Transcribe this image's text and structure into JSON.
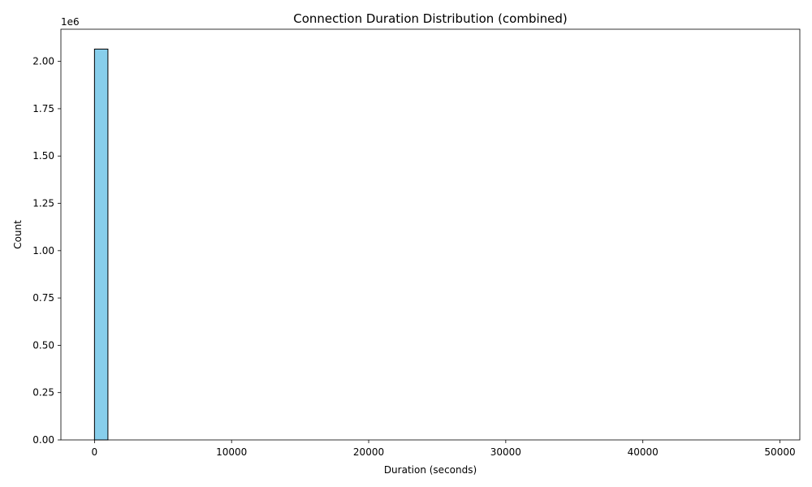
{
  "chart_data": {
    "type": "bar",
    "title": "Connection Duration Distribution (combined)",
    "xlabel": "Duration (seconds)",
    "ylabel": "Count",
    "y_offset_label": "1e6",
    "xlim": [
      -2450,
      51450
    ],
    "ylim": [
      0,
      2.17
    ],
    "x_ticks": [
      0,
      10000,
      20000,
      30000,
      40000,
      50000
    ],
    "x_tick_labels": [
      "0",
      "10000",
      "20000",
      "30000",
      "40000",
      "50000"
    ],
    "y_ticks": [
      0,
      0.25,
      0.5,
      0.75,
      1.0,
      1.25,
      1.5,
      1.75,
      2.0
    ],
    "y_tick_labels": [
      "0.00",
      "0.25",
      "0.50",
      "0.75",
      "1.00",
      "1.25",
      "1.50",
      "1.75",
      "2.00"
    ],
    "bin_edges_range": [
      0,
      49000
    ],
    "bin_count": 50,
    "bins": [
      {
        "start": 0,
        "end": 980,
        "count": 2.065
      }
    ],
    "bar_color": "#87ceeb",
    "edge_color": "#000000",
    "grid": false
  }
}
